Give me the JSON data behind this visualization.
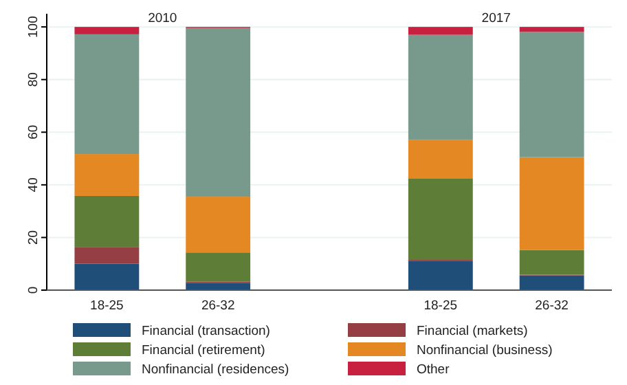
{
  "chart_data": {
    "type": "bar",
    "stacked": true,
    "categories": [
      "18-25",
      "26-32",
      null,
      "18-25",
      "26-32"
    ],
    "series": [
      {
        "name": "Financial (transaction)",
        "color": "#1f4e79",
        "values": [
          10,
          2.8,
          null,
          11,
          5.6
        ]
      },
      {
        "name": "Financial (markets)",
        "color": "#953f45",
        "values": [
          6.4,
          0.5,
          null,
          0.5,
          0.3
        ]
      },
      {
        "name": "Financial (retirement)",
        "color": "#5e7d36",
        "values": [
          19.4,
          11,
          null,
          31,
          9.3
        ]
      },
      {
        "name": "Nonfinancial (business)",
        "color": "#e48824",
        "values": [
          15.9,
          21.2,
          null,
          14.5,
          35.3
        ]
      },
      {
        "name": "Nonfinancial (residences)",
        "color": "#789a8c",
        "values": [
          45.5,
          64.1,
          null,
          40,
          47.6
        ]
      },
      {
        "name": "Other",
        "color": "#c8203f",
        "values": [
          2.8,
          0.4,
          null,
          3,
          1.9
        ]
      }
    ],
    "annotations": [
      "2010",
      "2017"
    ],
    "ylim": [
      0,
      105
    ],
    "yticks": [
      0,
      20,
      40,
      60,
      80,
      100
    ],
    "grid": "y",
    "legend": "bottom"
  }
}
